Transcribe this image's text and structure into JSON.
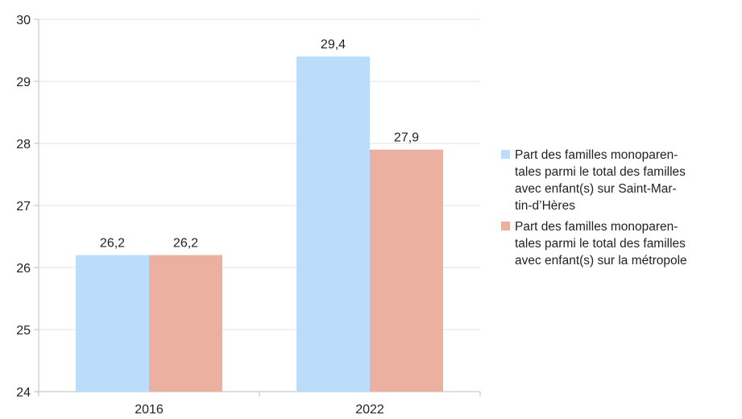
{
  "chart_data": {
    "type": "bar",
    "categories": [
      "2016",
      "2022"
    ],
    "series": [
      {
        "name": "Part des familles monoparen-\ntales parmi le total des familles\navec enfant(s) sur Saint-Mar-\ntin-d’Hères",
        "color": "#bcdcfb",
        "values": [
          26.2,
          29.4
        ],
        "labels": [
          "26,2",
          "29,4"
        ]
      },
      {
        "name": "Part des familles monoparen-\ntales parmi le total des familles\navec enfant(s) sur la métropole",
        "color": "#ecb0a1",
        "values": [
          26.2,
          27.9
        ],
        "labels": [
          "26,2",
          "27,9"
        ]
      }
    ],
    "ylim": [
      24,
      30
    ],
    "yticks": [
      24,
      25,
      26,
      27,
      28,
      29,
      30
    ],
    "grid": true,
    "legend_position": "right"
  }
}
